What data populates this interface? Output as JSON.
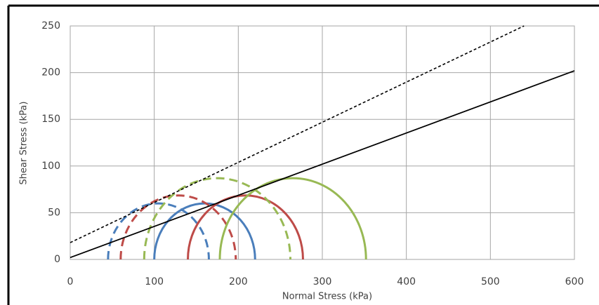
{
  "chart_data": {
    "type": "mohr",
    "x_label": "Normal Stress (kPa)",
    "y_label": "Shear Stress (kPa)",
    "xlim": [
      0,
      600
    ],
    "xticks": [
      0,
      100,
      200,
      300,
      400,
      500,
      600
    ],
    "ylim": [
      0,
      250
    ],
    "yticks": [
      0,
      50,
      100,
      150,
      200,
      250
    ],
    "grid": true,
    "lines": [
      {
        "color": "#000000",
        "dash": false,
        "x": [
          0,
          600
        ],
        "values": [
          2,
          202
        ]
      },
      {
        "color": "#000000",
        "dash": true,
        "x": [
          0,
          540
        ],
        "values": [
          18,
          250
        ]
      }
    ],
    "circles": [
      {
        "color": "#4a7ebb",
        "dash": true,
        "x": [
          45,
          165
        ]
      },
      {
        "color": "#4a7ebb",
        "dash": false,
        "x": [
          100,
          220
        ]
      },
      {
        "color": "#be4b48",
        "dash": true,
        "x": [
          60,
          197
        ]
      },
      {
        "color": "#be4b48",
        "dash": false,
        "x": [
          140,
          277
        ]
      },
      {
        "color": "#98b954",
        "dash": true,
        "x": [
          88,
          262
        ]
      },
      {
        "color": "#98b954",
        "dash": false,
        "x": [
          178,
          352
        ]
      }
    ]
  }
}
